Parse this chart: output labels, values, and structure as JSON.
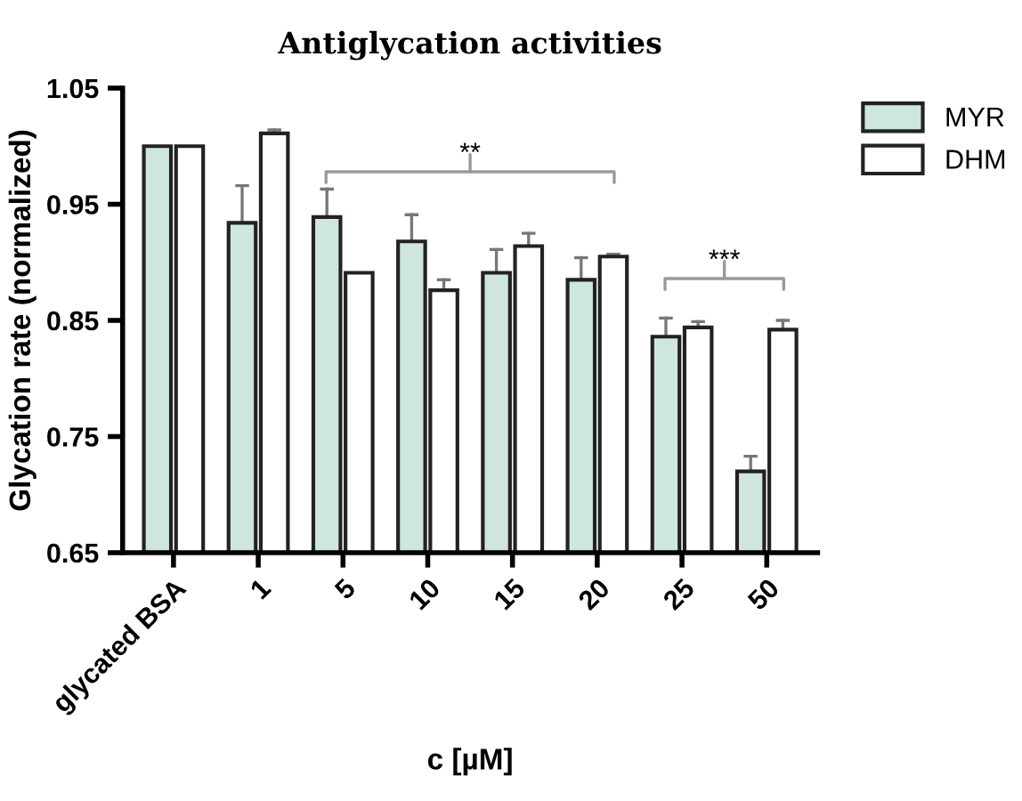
{
  "chart_data": {
    "type": "bar",
    "title": "Antiglycation activities",
    "xlabel": "c [µM]",
    "ylabel": "Glycation rate (normalized)",
    "categories": [
      "glycated BSA",
      "1",
      "5",
      "10",
      "15",
      "20",
      "25",
      "50"
    ],
    "series": [
      {
        "name": "MYR",
        "color": "#cfe5e0",
        "values": [
          1.0,
          0.934,
          0.939,
          0.918,
          0.891,
          0.885,
          0.836,
          0.72
        ],
        "errors": [
          null,
          [
            0.934,
            0.966
          ],
          [
            0.939,
            0.963
          ],
          [
            0.918,
            0.941
          ],
          [
            0.891,
            0.911
          ],
          [
            0.885,
            0.904
          ],
          [
            0.836,
            0.852
          ],
          [
            0.72,
            0.733
          ]
        ]
      },
      {
        "name": "DHM",
        "color": "#ffffff",
        "values": [
          1.0,
          1.011,
          0.891,
          0.876,
          0.914,
          0.905,
          0.844,
          0.842
        ],
        "errors": [
          null,
          [
            1.011,
            1.014
          ],
          null,
          [
            0.876,
            0.885
          ],
          [
            0.914,
            0.925
          ],
          [
            0.905,
            0.907
          ],
          [
            0.844,
            0.849
          ],
          [
            0.842,
            0.85
          ]
        ]
      }
    ],
    "ylim": [
      0.65,
      1.05
    ],
    "yticks": [
      0.65,
      0.75,
      0.85,
      0.95,
      1.05
    ],
    "grid": false,
    "legend": "top right",
    "annotations": [
      "**",
      "***"
    ]
  }
}
